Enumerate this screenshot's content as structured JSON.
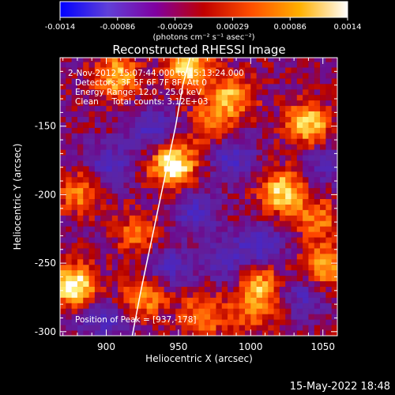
{
  "colorbar": {
    "ticks": [
      "-0.0014",
      "-0.00086",
      "-0.00029",
      "0.00029",
      "0.00086",
      "0.0014"
    ],
    "units": "(photons cm⁻² s⁻¹ asec⁻²)",
    "colors": [
      "#0000ff",
      "#6040d8",
      "#8000a0",
      "#c00000",
      "#ff5000",
      "#ffb000",
      "#ffffff"
    ]
  },
  "chart_data": {
    "type": "heatmap",
    "title": "Reconstructed RHESSI Image",
    "xlabel": "Heliocentric X (arcsec)",
    "ylabel": "Heliocentric Y (arcsec)",
    "xlim": [
      868,
      1060
    ],
    "ylim": [
      -303,
      -100
    ],
    "xticks": [
      900,
      950,
      1000,
      1050
    ],
    "yticks": [
      -150,
      -200,
      -250,
      -300
    ],
    "annotations": [
      " 2-Nov-2012 15:07:44.000 to 15:13:24.000",
      "Detectors: 3F 5F 6F 7F 8F, Att 0",
      "Energy Range: 12.0 - 25.0 keV",
      "Clean     Total counts: 3.12E+03"
    ],
    "peak_label": "Position of Peak = [937,-178]",
    "peak": [
      937,
      -178
    ],
    "limb_points": [
      [
        918,
        -303
      ],
      [
        924,
        -270
      ],
      [
        930,
        -240
      ],
      [
        936,
        -210
      ],
      [
        942,
        -180
      ],
      [
        948,
        -150
      ],
      [
        953,
        -120
      ],
      [
        958,
        -100
      ]
    ],
    "hot_spots": [
      {
        "x": 944,
        "y": -180,
        "v": 1.0
      },
      {
        "x": 875,
        "y": -268,
        "v": 0.95
      },
      {
        "x": 955,
        "y": -110,
        "v": 0.8
      },
      {
        "x": 1020,
        "y": -200,
        "v": 0.8
      },
      {
        "x": 1038,
        "y": -150,
        "v": 0.75
      },
      {
        "x": 905,
        "y": -115,
        "v": 0.7
      },
      {
        "x": 1050,
        "y": -255,
        "v": 0.7
      },
      {
        "x": 985,
        "y": -130,
        "v": 0.65
      },
      {
        "x": 925,
        "y": -275,
        "v": 0.6
      },
      {
        "x": 965,
        "y": -290,
        "v": 0.55
      },
      {
        "x": 1005,
        "y": -265,
        "v": 0.55
      },
      {
        "x": 880,
        "y": -200,
        "v": 0.5
      },
      {
        "x": 1000,
        "y": -285,
        "v": 0.5
      },
      {
        "x": 920,
        "y": -230,
        "v": 0.45
      },
      {
        "x": 970,
        "y": -150,
        "v": 0.45
      },
      {
        "x": 1045,
        "y": -220,
        "v": 0.45
      }
    ],
    "cold_spots": [
      {
        "x": 930,
        "y": -155,
        "v": -0.5
      },
      {
        "x": 985,
        "y": -175,
        "v": -0.5
      },
      {
        "x": 960,
        "y": -215,
        "v": -0.45
      },
      {
        "x": 1005,
        "y": -240,
        "v": -0.55
      },
      {
        "x": 900,
        "y": -180,
        "v": -0.45
      },
      {
        "x": 940,
        "y": -255,
        "v": -0.45
      },
      {
        "x": 980,
        "y": -250,
        "v": -0.4
      },
      {
        "x": 1035,
        "y": -275,
        "v": -0.4
      },
      {
        "x": 895,
        "y": -295,
        "v": -0.4
      },
      {
        "x": 1050,
        "y": -180,
        "v": -0.35
      }
    ]
  },
  "footer": {
    "date": "15-May-2022 18:48"
  }
}
